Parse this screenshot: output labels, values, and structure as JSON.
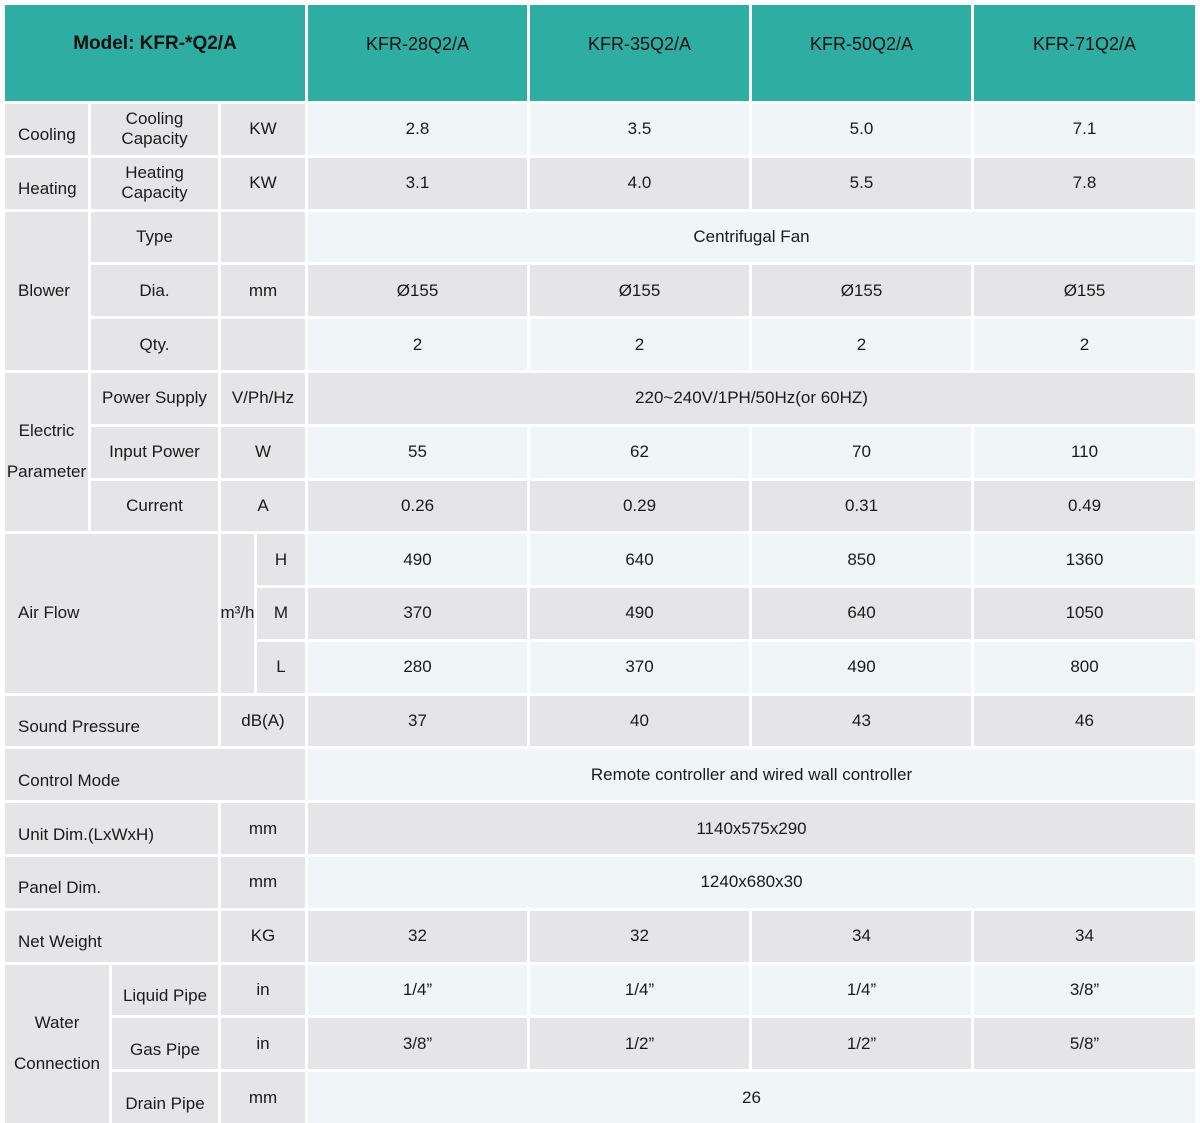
{
  "header": {
    "model_label": "Model: KFR-*Q2/A",
    "models": [
      "KFR-28Q2/A",
      "KFR-35Q2/A",
      "KFR-50Q2/A",
      "KFR-71Q2/A"
    ]
  },
  "s": {
    "cooling": {
      "label": "Cooling",
      "sub": "Cooling Capacity",
      "unit": "KW",
      "values": [
        "2.8",
        "3.5",
        "5.0",
        "7.1"
      ]
    },
    "heating": {
      "label": "Heating",
      "sub": "Heating Capacity",
      "unit": "KW",
      "values": [
        "3.1",
        "4.0",
        "5.5",
        "7.8"
      ]
    },
    "blower": {
      "label": "Blower",
      "type_label": "Type",
      "type_value": "Centrifugal Fan",
      "dia_label": "Dia.",
      "dia_unit": "mm",
      "dia_values": [
        "Ø155",
        "Ø155",
        "Ø155",
        "Ø155"
      ],
      "qty_label": "Qty.",
      "qty_values": [
        "2",
        "2",
        "2",
        "2"
      ]
    },
    "electric": {
      "label": "Electric Parameter",
      "power_supply": {
        "label": "Power Supply",
        "unit": "V/Ph/Hz",
        "value": "220~240V/1PH/50Hz(or 60HZ)"
      },
      "input_power": {
        "label": "Input Power",
        "unit": "W",
        "values": [
          "55",
          "62",
          "70",
          "110"
        ]
      },
      "current": {
        "label": "Current",
        "unit": "A",
        "values": [
          "0.26",
          "0.29",
          "0.31",
          "0.49"
        ]
      }
    },
    "air_flow": {
      "label": "Air Flow",
      "unit": "m³/h",
      "levels": [
        {
          "label": "H",
          "values": [
            "490",
            "640",
            "850",
            "1360"
          ]
        },
        {
          "label": "M",
          "values": [
            "370",
            "490",
            "640",
            "1050"
          ]
        },
        {
          "label": "L",
          "values": [
            "280",
            "370",
            "490",
            "800"
          ]
        }
      ]
    },
    "sound": {
      "label": "Sound Pressure",
      "unit": "dB(A)",
      "values": [
        "37",
        "40",
        "43",
        "46"
      ]
    },
    "control": {
      "label": "Control Mode",
      "value": "Remote controller and wired wall controller"
    },
    "unit_dim": {
      "label": "Unit Dim.(LxWxH)",
      "unit": "mm",
      "value": "1140x575x290"
    },
    "panel_dim": {
      "label": "Panel Dim.",
      "unit": "mm",
      "value": "1240x680x30"
    },
    "net_weight": {
      "label": "Net Weight",
      "unit": "KG",
      "values": [
        "32",
        "32",
        "34",
        "34"
      ]
    },
    "water": {
      "label": "Water Connection",
      "liquid": {
        "label": "Liquid Pipe",
        "unit": "in",
        "values": [
          "1/4”",
          "1/4”",
          "1/4”",
          "3/8”"
        ]
      },
      "gas": {
        "label": "Gas Pipe",
        "unit": "in",
        "values": [
          "3/8”",
          "1/2”",
          "1/2”",
          "5/8”"
        ]
      },
      "drain": {
        "label": "Drain Pipe",
        "unit": "mm",
        "value": "26"
      }
    }
  }
}
